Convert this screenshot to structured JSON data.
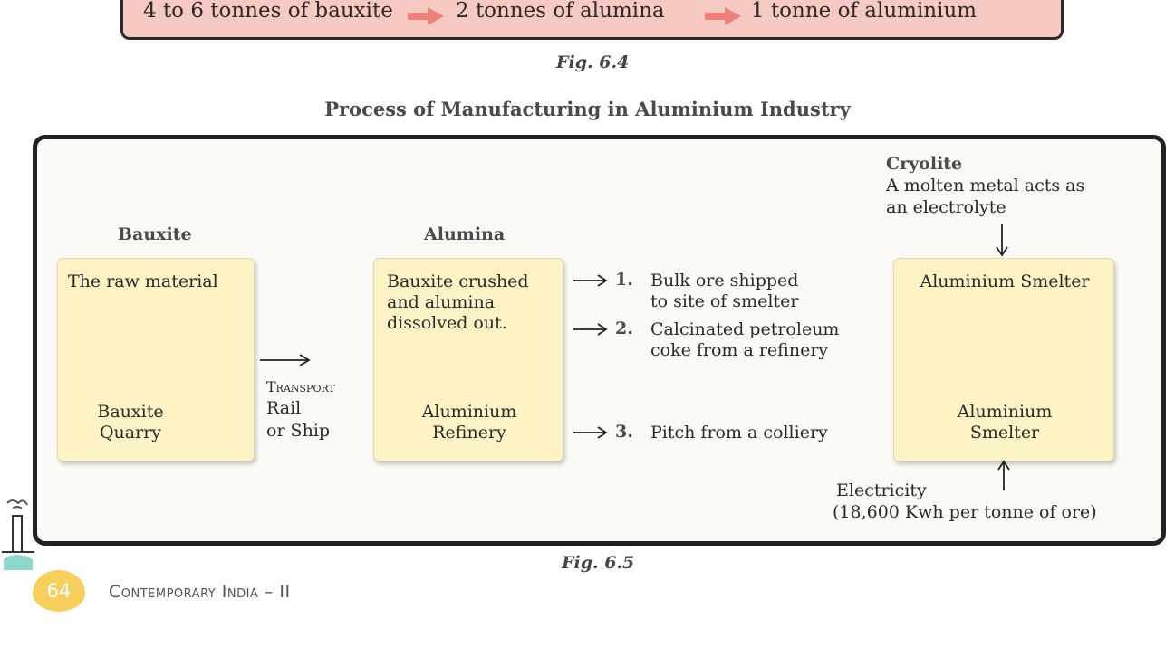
{
  "conversion": {
    "step1": "4 to 6 tonnes of bauxite",
    "step2": "2 tonnes of alumina",
    "step3": "1 tonne of aluminium",
    "arrow_color": "#ee7f79",
    "background": "#f6c9c2"
  },
  "fig_6_4": "Fig. 6.4",
  "diagram_title": "Process of Manufacturing in Aluminium Industry",
  "bauxite": {
    "heading": "Bauxite",
    "top_text": "The raw material",
    "bottom_line1": "Bauxite",
    "bottom_line2": "Quarry"
  },
  "transport": {
    "label": "Transport",
    "line1": "Rail",
    "line2": "or Ship"
  },
  "alumina": {
    "heading": "Alumina",
    "line1": "Bauxite crushed",
    "line2": "and alumina",
    "line3": "dissolved out.",
    "bottom_line1": "Aluminium",
    "bottom_line2": "Refinery"
  },
  "inputs": [
    {
      "number": "1.",
      "line1": "Bulk ore shipped",
      "line2": "to site of smelter"
    },
    {
      "number": "2.",
      "line1": "Calcinated petroleum",
      "line2": "coke from a refinery"
    },
    {
      "number": "3.",
      "line1": "Pitch from a colliery",
      "line2": ""
    }
  ],
  "cryolite": {
    "heading": "Cryolite",
    "line1": "A molten metal acts as",
    "line2": "an electrolyte"
  },
  "smelter": {
    "top_text": "Aluminium Smelter",
    "bottom_line1": "Aluminium",
    "bottom_line2": "Smelter"
  },
  "electricity": {
    "line1": "Electricity",
    "line2": "(18,600 Kwh per tonne of ore)"
  },
  "fig_6_5": "Fig. 6.5",
  "footer": {
    "page_number": "64",
    "running_head": "Contemporary India – II"
  },
  "colors": {
    "box_fill": "#fdf3c4",
    "badge": "#f6cf5c",
    "frame": "#222222"
  }
}
